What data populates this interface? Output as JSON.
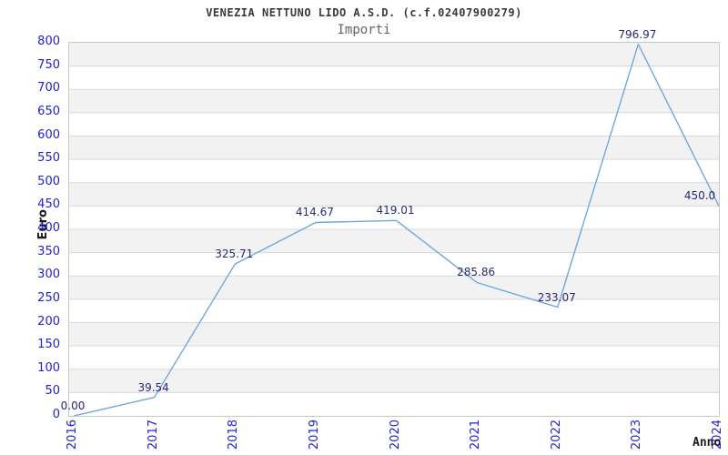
{
  "chart_data": {
    "type": "line",
    "title": "VENEZIA NETTUNO LIDO A.S.D. (c.f.02407900279)",
    "subtitle": "Importi",
    "xlabel": "Anno",
    "ylabel": "Euro",
    "categories": [
      "2016",
      "2017",
      "2018",
      "2019",
      "2020",
      "2021",
      "2022",
      "2023",
      "2024"
    ],
    "values": [
      0.0,
      39.54,
      325.71,
      414.67,
      419.01,
      285.86,
      233.07,
      796.97,
      450.0
    ],
    "point_labels": [
      "0.00",
      "39.54",
      "325.71",
      "414.67",
      "419.01",
      "285.86",
      "233.07",
      "796.97",
      "450.0"
    ],
    "ylim": [
      0,
      800
    ],
    "ytick_step": 50,
    "yticks": [
      0,
      50,
      100,
      150,
      200,
      250,
      300,
      350,
      400,
      450,
      500,
      550,
      600,
      650,
      700,
      750,
      800
    ],
    "grid": "horizontal-gridlines-with-alternating-bands",
    "legend": "none",
    "colors": {
      "line": "#6fa8dc",
      "axis_tick_labels": "#2222cc",
      "point_labels": "#282875",
      "band_fill": "#f2f2f2",
      "gridline": "#d9d9d9",
      "plot_border": "#c9c9c9",
      "title": "#3a3a3a",
      "subtitle": "#646464",
      "axis_titles": "#1a1a1a"
    }
  }
}
